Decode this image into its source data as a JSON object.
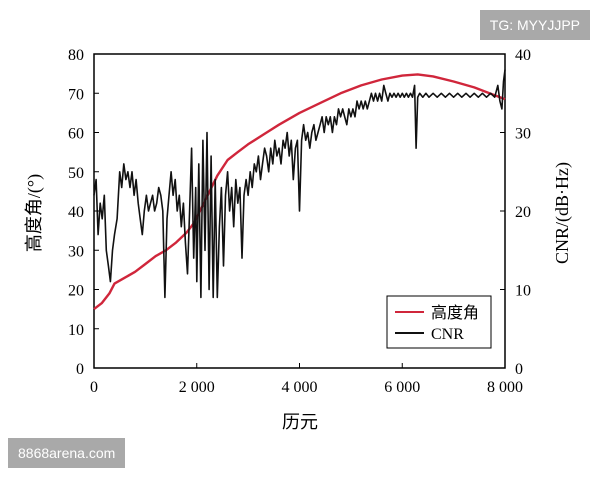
{
  "watermarks": {
    "top_right": "TG: MYYJJPP",
    "bottom_left": "8868arena.com"
  },
  "colors": {
    "elevation": "#d0263b",
    "cnr": "#111111",
    "axis": "#000000"
  },
  "chart_data": {
    "type": "line",
    "title": "",
    "xlabel": "历元",
    "ylabel_left": "高度角/(°)",
    "ylabel_right": "CNR/(dB·Hz)",
    "xlim": [
      0,
      8000
    ],
    "ylim_left": [
      0,
      80
    ],
    "ylim_right": [
      0,
      40
    ],
    "x_ticks": [
      0,
      2000,
      4000,
      6000,
      8000
    ],
    "x_tick_labels": [
      "0",
      "2 000",
      "4 000",
      "6 000",
      "8 000"
    ],
    "y_left_ticks": [
      0,
      10,
      20,
      30,
      40,
      50,
      60,
      70,
      80
    ],
    "y_left_tick_labels": [
      "0",
      "10",
      "20",
      "30",
      "40",
      "50",
      "60",
      "70",
      "80"
    ],
    "y_right_ticks": [
      0,
      10,
      20,
      30,
      40
    ],
    "y_right_tick_labels": [
      "0",
      "10",
      "20",
      "30",
      "40"
    ],
    "grid": false,
    "legend_position": "bottom-right",
    "series": [
      {
        "name": "高度角",
        "axis": "left",
        "color": "#d0263b",
        "points": [
          [
            0,
            15
          ],
          [
            150,
            16.5
          ],
          [
            300,
            19
          ],
          [
            400,
            21.5
          ],
          [
            600,
            23
          ],
          [
            800,
            24.5
          ],
          [
            1000,
            26.5
          ],
          [
            1200,
            28.5
          ],
          [
            1400,
            30
          ],
          [
            1600,
            32
          ],
          [
            1800,
            34.5
          ],
          [
            1950,
            37
          ],
          [
            2100,
            41
          ],
          [
            2250,
            45
          ],
          [
            2400,
            49
          ],
          [
            2600,
            53
          ],
          [
            2800,
            55
          ],
          [
            3000,
            57
          ],
          [
            3300,
            59.5
          ],
          [
            3600,
            62
          ],
          [
            4000,
            65
          ],
          [
            4400,
            67.5
          ],
          [
            4800,
            70
          ],
          [
            5200,
            72
          ],
          [
            5600,
            73.5
          ],
          [
            6000,
            74.5
          ],
          [
            6300,
            74.8
          ],
          [
            6600,
            74.3
          ],
          [
            7000,
            73
          ],
          [
            7400,
            71.5
          ],
          [
            7800,
            69.5
          ],
          [
            8000,
            68.5
          ]
        ]
      },
      {
        "name": "CNR",
        "axis": "right",
        "color": "#111111",
        "points": [
          [
            0,
            22
          ],
          [
            40,
            24
          ],
          [
            80,
            17
          ],
          [
            120,
            21
          ],
          [
            160,
            19
          ],
          [
            200,
            22
          ],
          [
            240,
            15
          ],
          [
            280,
            13
          ],
          [
            320,
            11
          ],
          [
            360,
            15
          ],
          [
            400,
            17
          ],
          [
            450,
            19
          ],
          [
            500,
            25
          ],
          [
            540,
            23
          ],
          [
            580,
            26
          ],
          [
            620,
            24
          ],
          [
            660,
            25
          ],
          [
            700,
            23
          ],
          [
            740,
            25
          ],
          [
            780,
            22
          ],
          [
            820,
            24
          ],
          [
            860,
            21
          ],
          [
            900,
            19
          ],
          [
            940,
            17
          ],
          [
            980,
            20
          ],
          [
            1020,
            22
          ],
          [
            1060,
            20
          ],
          [
            1100,
            21
          ],
          [
            1140,
            22
          ],
          [
            1180,
            20
          ],
          [
            1220,
            21
          ],
          [
            1260,
            23
          ],
          [
            1300,
            22
          ],
          [
            1340,
            20
          ],
          [
            1380,
            9
          ],
          [
            1420,
            19
          ],
          [
            1460,
            22
          ],
          [
            1500,
            25
          ],
          [
            1540,
            22
          ],
          [
            1580,
            24
          ],
          [
            1620,
            20
          ],
          [
            1660,
            22
          ],
          [
            1700,
            18
          ],
          [
            1740,
            21
          ],
          [
            1780,
            16
          ],
          [
            1820,
            12
          ],
          [
            1860,
            20
          ],
          [
            1900,
            28
          ],
          [
            1940,
            14
          ],
          [
            1980,
            23
          ],
          [
            2000,
            11
          ],
          [
            2040,
            26
          ],
          [
            2080,
            9
          ],
          [
            2120,
            29
          ],
          [
            2160,
            15
          ],
          [
            2200,
            30
          ],
          [
            2240,
            10
          ],
          [
            2280,
            27
          ],
          [
            2320,
            9
          ],
          [
            2360,
            24
          ],
          [
            2400,
            9
          ],
          [
            2440,
            18
          ],
          [
            2480,
            23
          ],
          [
            2520,
            13
          ],
          [
            2560,
            22
          ],
          [
            2600,
            25
          ],
          [
            2640,
            20
          ],
          [
            2680,
            23
          ],
          [
            2720,
            18
          ],
          [
            2760,
            24
          ],
          [
            2800,
            21
          ],
          [
            2840,
            23
          ],
          [
            2880,
            14
          ],
          [
            2920,
            22
          ],
          [
            2960,
            24
          ],
          [
            3000,
            22
          ],
          [
            3040,
            25
          ],
          [
            3080,
            23
          ],
          [
            3120,
            26
          ],
          [
            3160,
            25
          ],
          [
            3200,
            27
          ],
          [
            3240,
            24
          ],
          [
            3280,
            26
          ],
          [
            3320,
            28
          ],
          [
            3360,
            27
          ],
          [
            3400,
            25
          ],
          [
            3440,
            28
          ],
          [
            3480,
            26
          ],
          [
            3520,
            29
          ],
          [
            3560,
            27
          ],
          [
            3600,
            28
          ],
          [
            3640,
            26
          ],
          [
            3680,
            29
          ],
          [
            3720,
            28
          ],
          [
            3760,
            30
          ],
          [
            3800,
            27
          ],
          [
            3840,
            29
          ],
          [
            3880,
            24
          ],
          [
            3920,
            28
          ],
          [
            3960,
            29
          ],
          [
            4000,
            20
          ],
          [
            4040,
            29
          ],
          [
            4080,
            31
          ],
          [
            4120,
            29
          ],
          [
            4160,
            30
          ],
          [
            4200,
            28
          ],
          [
            4240,
            30
          ],
          [
            4280,
            31
          ],
          [
            4320,
            29
          ],
          [
            4360,
            30
          ],
          [
            4400,
            31
          ],
          [
            4440,
            32
          ],
          [
            4480,
            30
          ],
          [
            4520,
            32
          ],
          [
            4560,
            31
          ],
          [
            4600,
            32
          ],
          [
            4640,
            30
          ],
          [
            4680,
            32
          ],
          [
            4720,
            31
          ],
          [
            4760,
            33
          ],
          [
            4800,
            32
          ],
          [
            4840,
            33
          ],
          [
            4880,
            32
          ],
          [
            4920,
            31
          ],
          [
            4960,
            33
          ],
          [
            5000,
            32
          ],
          [
            5040,
            33
          ],
          [
            5080,
            32
          ],
          [
            5120,
            34
          ],
          [
            5160,
            33
          ],
          [
            5200,
            34
          ],
          [
            5240,
            33
          ],
          [
            5280,
            34
          ],
          [
            5320,
            33
          ],
          [
            5360,
            34
          ],
          [
            5400,
            35
          ],
          [
            5440,
            34
          ],
          [
            5480,
            35
          ],
          [
            5520,
            34
          ],
          [
            5560,
            35
          ],
          [
            5600,
            34
          ],
          [
            5640,
            36
          ],
          [
            5680,
            35
          ],
          [
            5720,
            34
          ],
          [
            5760,
            35
          ],
          [
            5800,
            34.5
          ],
          [
            5840,
            35
          ],
          [
            5880,
            34.5
          ],
          [
            5920,
            35
          ],
          [
            5960,
            34.5
          ],
          [
            6000,
            35
          ],
          [
            6040,
            34.5
          ],
          [
            6080,
            35
          ],
          [
            6120,
            34.5
          ],
          [
            6160,
            35
          ],
          [
            6200,
            34.5
          ],
          [
            6240,
            36
          ],
          [
            6270,
            28
          ],
          [
            6300,
            34.5
          ],
          [
            6340,
            35
          ],
          [
            6400,
            34.5
          ],
          [
            6460,
            35
          ],
          [
            6520,
            34.5
          ],
          [
            6600,
            35
          ],
          [
            6680,
            34.5
          ],
          [
            6760,
            35
          ],
          [
            6840,
            34.5
          ],
          [
            6920,
            35
          ],
          [
            7000,
            34.5
          ],
          [
            7080,
            35
          ],
          [
            7160,
            34.5
          ],
          [
            7240,
            35
          ],
          [
            7320,
            34.5
          ],
          [
            7400,
            35
          ],
          [
            7480,
            34.5
          ],
          [
            7560,
            35
          ],
          [
            7640,
            34.5
          ],
          [
            7720,
            35
          ],
          [
            7800,
            34.5
          ],
          [
            7860,
            36
          ],
          [
            7900,
            34
          ],
          [
            7940,
            33
          ],
          [
            7970,
            36.5
          ],
          [
            8000,
            38
          ]
        ]
      }
    ]
  }
}
